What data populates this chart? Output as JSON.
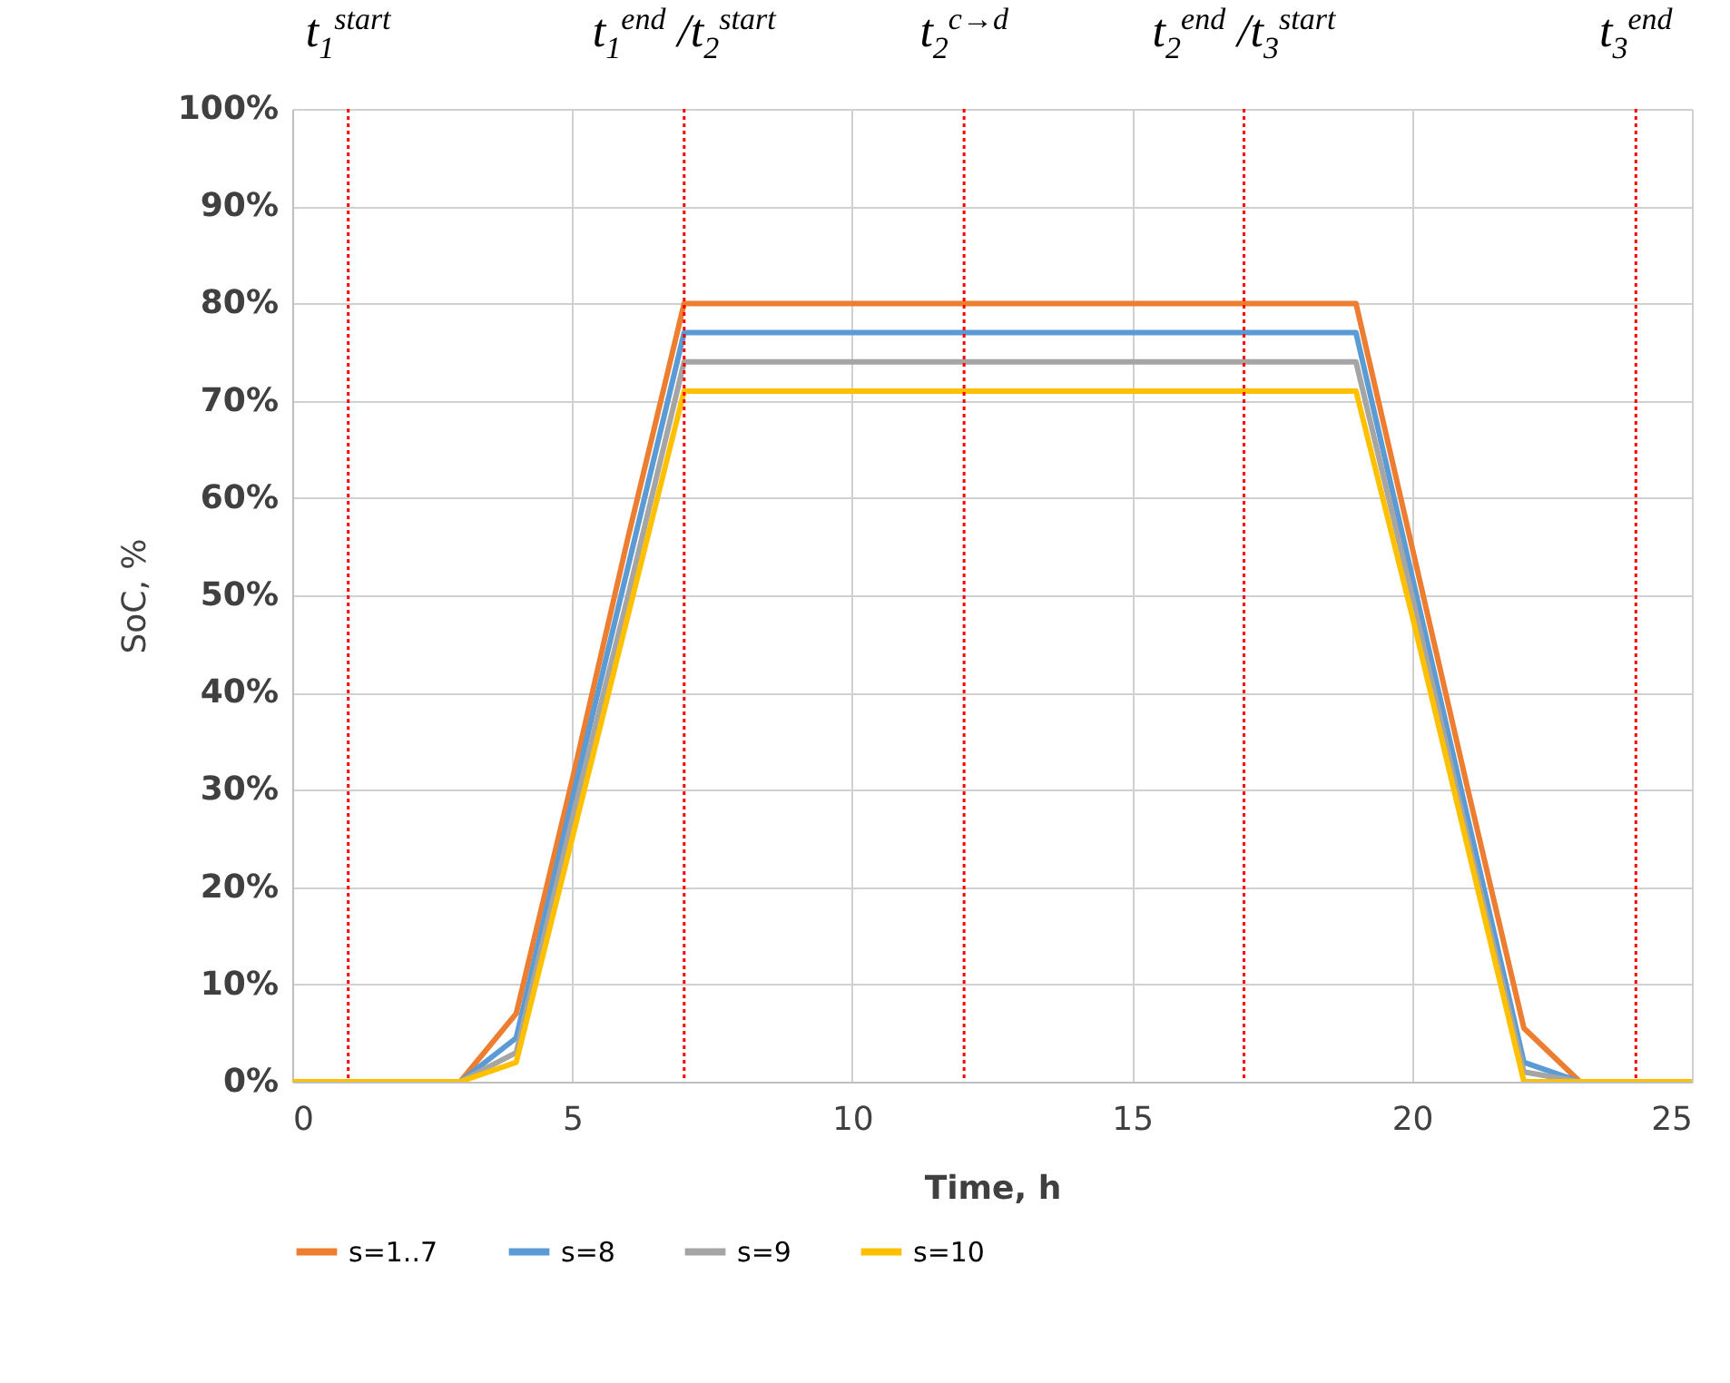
{
  "chart_data": {
    "type": "line",
    "xlabel": "Time, h",
    "ylabel": "SoC, %",
    "x": [
      0,
      1,
      2,
      3,
      4,
      5,
      6,
      7,
      8,
      9,
      10,
      11,
      12,
      13,
      14,
      15,
      16,
      17,
      18,
      19,
      20,
      21,
      22,
      23,
      24,
      25
    ],
    "series": [
      {
        "name": "s=1..7",
        "color": "#ed7d31",
        "values": [
          null,
          null,
          0,
          0,
          7,
          31,
          56,
          80,
          80,
          80,
          80,
          80,
          80,
          80,
          80,
          80,
          80,
          80,
          80,
          80,
          55,
          30,
          5.5,
          0,
          0,
          0
        ]
      },
      {
        "name": "s=8",
        "color": "#5b9bd5",
        "values": [
          null,
          null,
          0,
          0,
          4.5,
          29,
          53,
          77,
          77,
          77,
          77,
          77,
          77,
          77,
          77,
          77,
          77,
          77,
          77,
          77,
          52,
          27,
          2,
          0,
          0,
          0
        ]
      },
      {
        "name": "s=9",
        "color": "#a5a5a5",
        "values": [
          0,
          0,
          0,
          0,
          3,
          27,
          50,
          74,
          74,
          74,
          74,
          74,
          74,
          74,
          74,
          74,
          74,
          74,
          74,
          74,
          50,
          25,
          1,
          0,
          0,
          0
        ]
      },
      {
        "name": "s=10",
        "color": "#ffc000",
        "values": [
          0,
          0,
          0,
          0,
          2,
          25,
          48,
          71,
          71,
          71,
          71,
          71,
          71,
          71,
          71,
          71,
          71,
          71,
          71,
          71,
          48,
          24,
          0,
          0,
          0,
          0
        ]
      }
    ],
    "xlim": [
      0,
      25
    ],
    "xticks": [
      0,
      5,
      10,
      15,
      20,
      25
    ],
    "ylim": [
      0,
      100
    ],
    "yticks": [
      {
        "value": 0,
        "label": "0%"
      },
      {
        "value": 10,
        "label": "10%"
      },
      {
        "value": 20,
        "label": "20%"
      },
      {
        "value": 30,
        "label": "30%"
      },
      {
        "value": 40,
        "label": "40%"
      },
      {
        "value": 50,
        "label": "50%"
      },
      {
        "value": 60,
        "label": "60%"
      },
      {
        "value": 70,
        "label": "70%"
      },
      {
        "value": 80,
        "label": "80%"
      },
      {
        "value": 90,
        "label": "90%"
      },
      {
        "value": 100,
        "label": "100%"
      }
    ],
    "ref_lines": [
      {
        "axis": "x",
        "value": 1,
        "label": "t$_{1}$$^{start}$",
        "color": "#ff0000",
        "line_style": "dotted"
      },
      {
        "axis": "x",
        "value": 7,
        "label": "t$_{1}$$^{end}$ /t$_{2}$$^{start}$",
        "color": "#ff0000",
        "line_style": "dotted"
      },
      {
        "axis": "x",
        "value": 12,
        "label": "t$_{2}$$^{c→d}$",
        "color": "#ff0000",
        "line_style": "dotted"
      },
      {
        "axis": "x",
        "value": 17,
        "label": "t$_{2}$$^{end}$ /t$_{3}$$^{start}$",
        "color": "#ff0000",
        "line_style": "dotted"
      },
      {
        "axis": "x",
        "value": 24,
        "label": "t$_{3}$$^{end}$",
        "color": "#ff0000",
        "line_style": "dotted"
      }
    ],
    "grid": true,
    "legend": "bottom",
    "marker": "none",
    "line_style": "solid"
  }
}
